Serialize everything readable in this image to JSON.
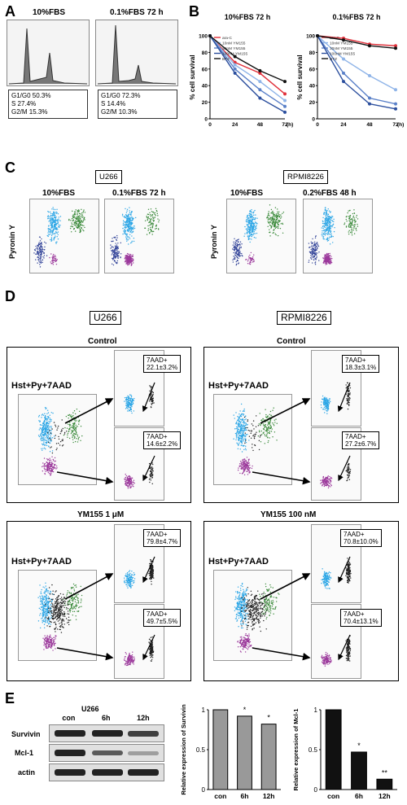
{
  "panelA": {
    "label": "A",
    "left": {
      "title": "10%FBS",
      "stats": [
        "G1/G0 50.3%",
        "S 27.4%",
        "G2/M 15.3%"
      ]
    },
    "right": {
      "title": "0.1%FBS 72 h",
      "stats": [
        "G1/G0 72.3%",
        "S 14.4%",
        "G2/M 10.3%"
      ]
    }
  },
  "panelB": {
    "label": "B",
    "chart_data": [
      {
        "type": "line",
        "title": "10%FBS 72 h",
        "ylabel": "% cell survival",
        "xlabel": "(h)",
        "x": [
          0,
          24,
          48,
          72
        ],
        "ylim": [
          0,
          100
        ],
        "yticks": [
          0,
          20,
          40,
          60,
          80,
          100
        ],
        "series": [
          {
            "name": "ara-C",
            "color": "#e0303a",
            "values": [
              100,
              68,
              55,
              30
            ]
          },
          {
            "name": "10nM YM155",
            "color": "#8fb4e8",
            "values": [
              100,
              65,
              45,
              22
            ]
          },
          {
            "name": "30nM YM155",
            "color": "#5a80c8",
            "values": [
              100,
              60,
              35,
              15
            ]
          },
          {
            "name": "100nM YM155",
            "color": "#2c4f9e",
            "values": [
              100,
              55,
              25,
              8
            ]
          },
          {
            "name": "BTZ",
            "color": "#111111",
            "values": [
              100,
              75,
              58,
              45
            ]
          }
        ]
      },
      {
        "type": "line",
        "title": "0.1%FBS 72 h",
        "ylabel": "% cell survival",
        "xlabel": "(h)",
        "x": [
          0,
          24,
          48,
          72
        ],
        "ylim": [
          0,
          100
        ],
        "yticks": [
          0,
          20,
          40,
          60,
          80,
          100
        ],
        "series": [
          {
            "name": "ara-C",
            "color": "#e0303a",
            "values": [
              100,
              97,
              90,
              88
            ]
          },
          {
            "name": "10nM YM155",
            "color": "#8fb4e8",
            "values": [
              100,
              72,
              52,
              35
            ]
          },
          {
            "name": "30nM YM155",
            "color": "#5a80c8",
            "values": [
              100,
              55,
              25,
              18
            ]
          },
          {
            "name": "100nM YM155",
            "color": "#2c4f9e",
            "values": [
              100,
              45,
              18,
              12
            ]
          },
          {
            "name": "BTZ",
            "color": "#111111",
            "values": [
              100,
              95,
              88,
              85
            ]
          }
        ]
      }
    ]
  },
  "panelC": {
    "label": "C",
    "ylabel": "Pyronin Y",
    "u266": {
      "cell": "U266",
      "left": "10%FBS",
      "right": "0.1%FBS 72 h"
    },
    "rpmi": {
      "cell": "RPMI8226",
      "left": "10%FBS",
      "right": "0.2%FBS 48 h"
    }
  },
  "panelD": {
    "label": "D",
    "u266": {
      "cell": "U266",
      "control": {
        "title": "Control",
        "stain": "Hst+Py+7AAD",
        "g1": "7AAD+",
        "g1v": "22.1±3.2%",
        "g0": "7AAD+",
        "g0v": "14.6±2.2%"
      },
      "treated": {
        "title": "YM155 1 μM",
        "stain": "Hst+Py+7AAD",
        "g1": "7AAD+",
        "g1v": "79.8±4.7%",
        "g0": "7AAD+",
        "g0v": "49.7±5.5%"
      }
    },
    "rpmi": {
      "cell": "RPMI8226",
      "control": {
        "title": "Control",
        "stain": "Hst+Py+7AAD",
        "g1": "7AAD+",
        "g1v": "18.3±3.1%",
        "g0": "7AAD+",
        "g0v": "27.2±6.7%"
      },
      "treated": {
        "title": "YM155 100 nM",
        "stain": "Hst+Py+7AAD",
        "g1": "7AAD+",
        "g1v": "70.8±10.0%",
        "g0": "7AAD+",
        "g0v": "70.4±13.1%"
      }
    }
  },
  "panelE": {
    "label": "E",
    "blot": {
      "cell": "U266",
      "lanes": [
        "con",
        "6h",
        "12h"
      ],
      "rows": [
        "Survivin",
        "Mcl-1",
        "actin"
      ]
    },
    "chart_data": [
      {
        "type": "bar",
        "categories": [
          "con",
          "6h",
          "12h"
        ],
        "values": [
          1,
          0.92,
          0.82
        ],
        "ylabel": "Relative expression of Survivin",
        "ylim": [
          0,
          1
        ],
        "yticks": [
          0,
          0.5,
          1
        ],
        "color": "#999999",
        "sig": [
          "",
          "*",
          "*"
        ]
      },
      {
        "type": "bar",
        "categories": [
          "con",
          "6h",
          "12h"
        ],
        "values": [
          1,
          0.47,
          0.13
        ],
        "ylabel": "Relative expression of Mcl-1",
        "ylim": [
          0,
          1
        ],
        "yticks": [
          0,
          0.5,
          1
        ],
        "color": "#111111",
        "sig": [
          "",
          "*",
          "**"
        ]
      }
    ]
  }
}
